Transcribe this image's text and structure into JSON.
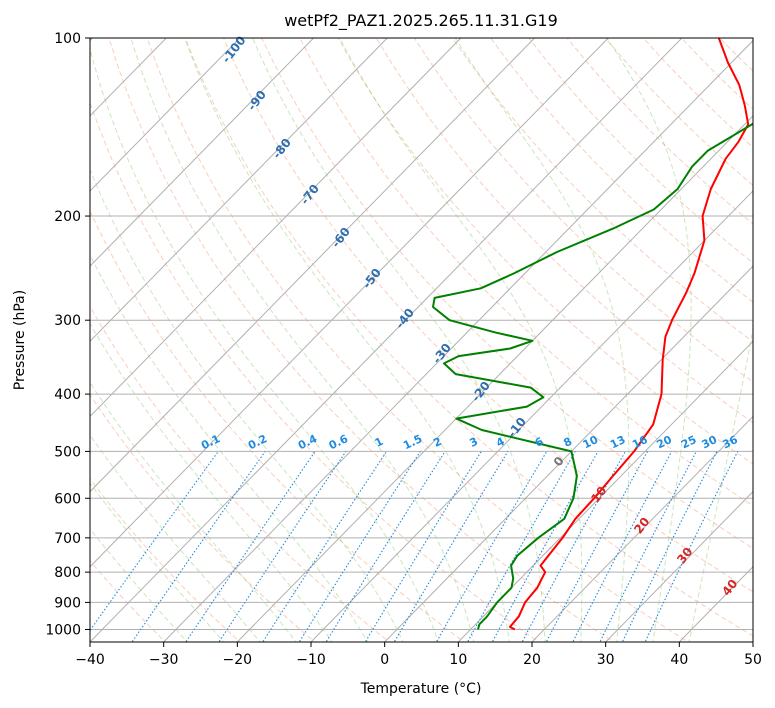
{
  "chart_data": {
    "type": "line",
    "diagram": "skew-T log-P",
    "title": "wetPf2_PAZ1.2025.265.11.31.G19",
    "xlabel": "Temperature (°C)",
    "ylabel": "Pressure (hPa)",
    "xlim": [
      -40,
      50
    ],
    "ylim": [
      1050,
      100
    ],
    "y_scale": "log",
    "grid": true,
    "x_ticks": [
      -40,
      -30,
      -20,
      -10,
      0,
      10,
      20,
      30,
      40,
      50
    ],
    "y_ticks": [
      100,
      200,
      300,
      400,
      500,
      600,
      700,
      800,
      900,
      1000
    ],
    "dry_adiabat_labels": [
      "-100",
      "-90",
      "-80",
      "-70",
      "-60",
      "-50",
      "-40",
      "-30",
      "-20",
      "-10",
      "0",
      "10",
      "20",
      "30",
      "40"
    ],
    "dry_adiabat_label_values": [
      -100,
      -90,
      -80,
      -70,
      -60,
      -50,
      -40,
      -30,
      -20,
      -10,
      0,
      10,
      20,
      30,
      40
    ],
    "mixing_ratio_labels": [
      "0.1",
      "0.2",
      "0.4",
      "0.6",
      "1",
      "1.5",
      "2",
      "3",
      "4",
      "6",
      "8",
      "10",
      "13",
      "16",
      "20",
      "25",
      "30",
      "36"
    ],
    "mixing_ratio_values": [
      0.1,
      0.2,
      0.4,
      0.6,
      1,
      1.5,
      2,
      3,
      4,
      6,
      8,
      10,
      13,
      16,
      20,
      25,
      30,
      36
    ],
    "series": [
      {
        "name": "",
        "kind": "temperature",
        "color": "#ff0000",
        "points": [
          {
            "p": 1000,
            "t": 16.0
          },
          {
            "p": 990,
            "t": 15.0
          },
          {
            "p": 950,
            "t": 14.8
          },
          {
            "p": 900,
            "t": 13.8
          },
          {
            "p": 850,
            "t": 13.5
          },
          {
            "p": 800,
            "t": 12.5
          },
          {
            "p": 780,
            "t": 11.0
          },
          {
            "p": 700,
            "t": 10.3
          },
          {
            "p": 650,
            "t": 9.5
          },
          {
            "p": 600,
            "t": 9.3
          },
          {
            "p": 550,
            "t": 8.9
          },
          {
            "p": 500,
            "t": 8.5
          },
          {
            "p": 450,
            "t": 7.5
          },
          {
            "p": 400,
            "t": 4.6
          },
          {
            "p": 350,
            "t": 0.2
          },
          {
            "p": 320,
            "t": -2.5
          },
          {
            "p": 300,
            "t": -3.8
          },
          {
            "p": 270,
            "t": -5.5
          },
          {
            "p": 250,
            "t": -7.0
          },
          {
            "p": 220,
            "t": -10.0
          },
          {
            "p": 200,
            "t": -13.5
          },
          {
            "p": 180,
            "t": -16.0
          },
          {
            "p": 160,
            "t": -18.0
          },
          {
            "p": 150,
            "t": -18.5
          },
          {
            "p": 140,
            "t": -19.5
          },
          {
            "p": 130,
            "t": -22.5
          },
          {
            "p": 120,
            "t": -26.0
          },
          {
            "p": 110,
            "t": -30.5
          },
          {
            "p": 100,
            "t": -35.0
          }
        ]
      },
      {
        "name": "",
        "kind": "dewpoint",
        "color": "#008000",
        "points": [
          {
            "p": 1000,
            "t": 11.0
          },
          {
            "p": 980,
            "t": 10.5
          },
          {
            "p": 950,
            "t": 10.5
          },
          {
            "p": 900,
            "t": 10.0
          },
          {
            "p": 850,
            "t": 10.0
          },
          {
            "p": 820,
            "t": 9.0
          },
          {
            "p": 780,
            "t": 7.0
          },
          {
            "p": 750,
            "t": 6.5
          },
          {
            "p": 700,
            "t": 7.0
          },
          {
            "p": 650,
            "t": 8.0
          },
          {
            "p": 600,
            "t": 6.5
          },
          {
            "p": 550,
            "t": 4.0
          },
          {
            "p": 500,
            "t": 0.0
          },
          {
            "p": 460,
            "t": -15.0
          },
          {
            "p": 440,
            "t": -20.0
          },
          {
            "p": 420,
            "t": -12.0
          },
          {
            "p": 405,
            "t": -11.0
          },
          {
            "p": 390,
            "t": -14.0
          },
          {
            "p": 370,
            "t": -26.0
          },
          {
            "p": 355,
            "t": -29.0
          },
          {
            "p": 345,
            "t": -28.0
          },
          {
            "p": 335,
            "t": -22.0
          },
          {
            "p": 325,
            "t": -20.0
          },
          {
            "p": 315,
            "t": -26.0
          },
          {
            "p": 300,
            "t": -34.0
          },
          {
            "p": 285,
            "t": -38.0
          },
          {
            "p": 275,
            "t": -39.0
          },
          {
            "p": 265,
            "t": -34.0
          },
          {
            "p": 250,
            "t": -31.5
          },
          {
            "p": 230,
            "t": -28.5
          },
          {
            "p": 210,
            "t": -24.0
          },
          {
            "p": 195,
            "t": -21.0
          },
          {
            "p": 180,
            "t": -20.5
          },
          {
            "p": 165,
            "t": -21.5
          },
          {
            "p": 155,
            "t": -21.5
          },
          {
            "p": 140,
            "t": -19.0
          },
          {
            "p": 125,
            "t": -17.0
          },
          {
            "p": 110,
            "t": -15.0
          },
          {
            "p": 100,
            "t": -14.0
          }
        ]
      }
    ]
  }
}
